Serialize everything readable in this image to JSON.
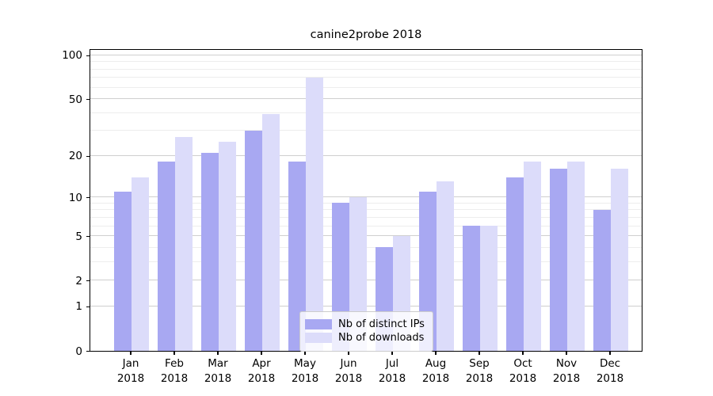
{
  "title": "canine2probe 2018",
  "legend": {
    "items": [
      {
        "label": "Nb of distinct IPs",
        "color": "#a8a8f2"
      },
      {
        "label": "Nb of downloads",
        "color": "#dcdcfa"
      }
    ]
  },
  "chart_data": {
    "type": "bar",
    "title": "canine2probe 2018",
    "x_categories": [
      {
        "month": "Jan",
        "year": "2018"
      },
      {
        "month": "Feb",
        "year": "2018"
      },
      {
        "month": "Mar",
        "year": "2018"
      },
      {
        "month": "Apr",
        "year": "2018"
      },
      {
        "month": "May",
        "year": "2018"
      },
      {
        "month": "Jun",
        "year": "2018"
      },
      {
        "month": "Jul",
        "year": "2018"
      },
      {
        "month": "Aug",
        "year": "2018"
      },
      {
        "month": "Sep",
        "year": "2018"
      },
      {
        "month": "Oct",
        "year": "2018"
      },
      {
        "month": "Nov",
        "year": "2018"
      },
      {
        "month": "Dec",
        "year": "2018"
      }
    ],
    "series": [
      {
        "name": "Nb of distinct IPs",
        "color": "#a8a8f2",
        "values": [
          11,
          18,
          21,
          30,
          18,
          9,
          4,
          11,
          6,
          14,
          16,
          8
        ]
      },
      {
        "name": "Nb of downloads",
        "color": "#dcdcfa",
        "values": [
          14,
          27,
          25,
          39,
          70,
          10,
          5,
          13,
          6,
          18,
          18,
          16
        ]
      }
    ],
    "y_scale": "log10(value+1)",
    "y_major_ticks": [
      0,
      1,
      2,
      5,
      10,
      20,
      50,
      100
    ],
    "y_minor_gridlines": [
      3,
      4,
      6,
      7,
      8,
      9,
      30,
      40,
      60,
      70,
      80,
      90
    ],
    "ylim": [
      0,
      111
    ],
    "grid": true,
    "legend_position": "lower-center"
  },
  "colors": {
    "bar_ips": "#a8a8f2",
    "bar_downloads": "#dcdcfa",
    "grid_major": "#cfcfcf",
    "grid_minor": "#ededed",
    "axis": "#000000",
    "legend_border": "#cccccc"
  }
}
